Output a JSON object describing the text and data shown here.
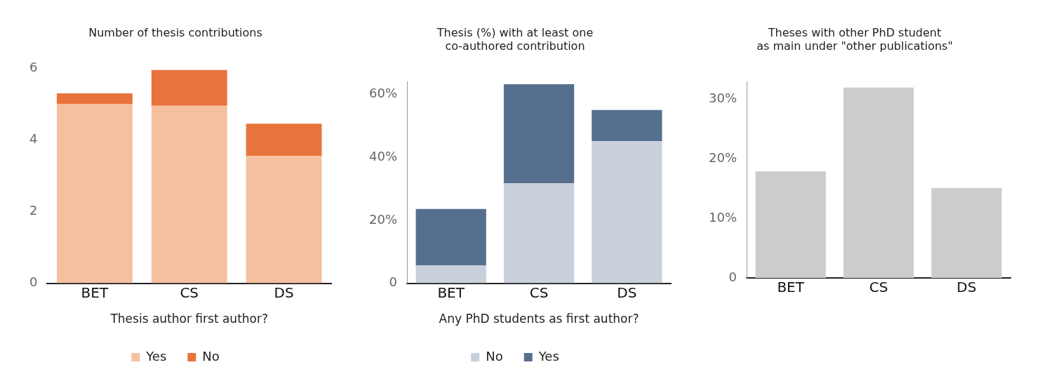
{
  "chart_data": [
    {
      "type": "bar",
      "title": "Number of thesis contributions",
      "xlabel": "Thesis author first author?",
      "categories": [
        "BET",
        "CS",
        "DS"
      ],
      "stacked": true,
      "legend": "bottom",
      "ylim": [
        0,
        6
      ],
      "yticks": [
        0,
        2,
        4,
        6
      ],
      "series": [
        {
          "name": "Yes",
          "color": "#f5c0a0",
          "values": [
            5.0,
            4.95,
            3.55
          ]
        },
        {
          "name": "No",
          "color": "#e8743b",
          "values": [
            0.3,
            1.0,
            0.9
          ]
        }
      ]
    },
    {
      "type": "bar",
      "title": "Thesis (%) with at least one\nco-authored contribution",
      "xlabel": "Any PhD students as first author?",
      "categories": [
        "BET",
        "CS",
        "DS"
      ],
      "stacked": true,
      "legend": "bottom",
      "ylim": [
        0,
        64
      ],
      "yticks": [
        0,
        {
          "value": 20,
          "label": "20%"
        },
        {
          "value": 40,
          "label": "40%"
        },
        {
          "value": 60,
          "label": "60%"
        }
      ],
      "series": [
        {
          "name": "No",
          "color": "#c9d0dc",
          "values": [
            5.7,
            31.7,
            45.1
          ]
        },
        {
          "name": "Yes",
          "color": "#566f8e",
          "values": [
            17.9,
            31.5,
            9.9
          ]
        }
      ]
    },
    {
      "type": "bar",
      "title": "Theses with other PhD student\nas main under \"other publications\"",
      "categories": [
        "BET",
        "CS",
        "DS"
      ],
      "ylim": [
        0,
        33
      ],
      "yticks": [
        0,
        {
          "value": 10,
          "label": "10%"
        },
        {
          "value": 20,
          "label": "20%"
        },
        {
          "value": 30,
          "label": "30%"
        }
      ],
      "color": "#cccbce",
      "values": [
        17.9,
        32.0,
        15.1
      ]
    }
  ]
}
